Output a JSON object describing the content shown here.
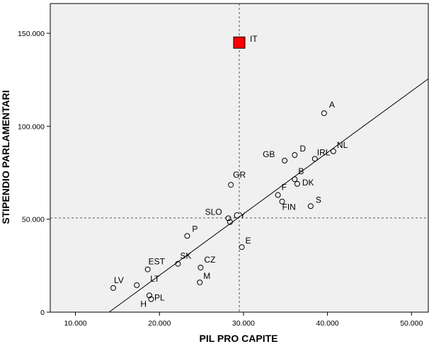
{
  "chart_data": {
    "type": "scatter",
    "xlabel": "PIL PRO CAPITE",
    "ylabel": "STIPENDIO PARLAMENTARI",
    "xlim": [
      7000,
      52000
    ],
    "ylim": [
      0,
      166000
    ],
    "x_ticks": [
      10000,
      20000,
      30000,
      40000,
      50000
    ],
    "x_tick_labels": [
      "10.000",
      "20.000",
      "30.000",
      "40.000",
      "50.000"
    ],
    "y_ticks": [
      0,
      50000,
      100000,
      150000
    ],
    "y_tick_labels": [
      "0",
      "50.000",
      "100.000",
      "150.000"
    ],
    "reference_lines": {
      "x": 29500,
      "y": 50700
    },
    "fit_line": {
      "x1": 14000,
      "y1": 0,
      "x2": 52000,
      "y2": 125500
    },
    "background": "#f0f0f0",
    "points": [
      {
        "label": "IT",
        "x": 29500,
        "y": 145000,
        "highlight": true
      },
      {
        "label": "A",
        "x": 39600,
        "y": 107000
      },
      {
        "label": "NL",
        "x": 40700,
        "y": 86500
      },
      {
        "label": "IRL",
        "x": 38500,
        "y": 82500
      },
      {
        "label": "D",
        "x": 36100,
        "y": 84500
      },
      {
        "label": "GB",
        "x": 34900,
        "y": 81500
      },
      {
        "label": "B",
        "x": 36100,
        "y": 71500
      },
      {
        "label": "DK",
        "x": 36400,
        "y": 69000
      },
      {
        "label": "F",
        "x": 34100,
        "y": 63000
      },
      {
        "label": "S",
        "x": 38000,
        "y": 57000
      },
      {
        "label": "FIN",
        "x": 34600,
        "y": 59500
      },
      {
        "label": "GR",
        "x": 28500,
        "y": 68500
      },
      {
        "label": "SLO",
        "x": 28200,
        "y": 50500
      },
      {
        "label": "CY",
        "x": 28400,
        "y": 48500
      },
      {
        "label": "E",
        "x": 29800,
        "y": 35000
      },
      {
        "label": "P",
        "x": 23300,
        "y": 41000
      },
      {
        "label": "SK",
        "x": 22200,
        "y": 26000
      },
      {
        "label": "CZ",
        "x": 24900,
        "y": 24000
      },
      {
        "label": "M",
        "x": 24800,
        "y": 16000
      },
      {
        "label": "EST",
        "x": 18600,
        "y": 23000
      },
      {
        "label": "LT",
        "x": 17300,
        "y": 14500
      },
      {
        "label": "LV",
        "x": 14500,
        "y": 13000
      },
      {
        "label": "PL",
        "x": 18800,
        "y": 9000
      },
      {
        "label": "H",
        "x": 19000,
        "y": 7000
      }
    ]
  }
}
